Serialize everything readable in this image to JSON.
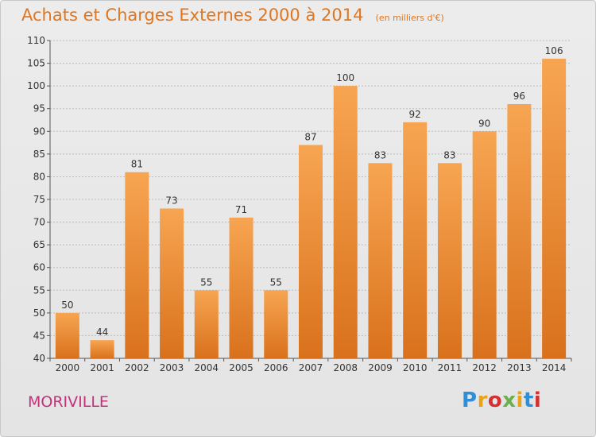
{
  "header": {
    "title": "Achats et Charges Externes 2000 à 2014",
    "subtitle": "(en milliers d'€)"
  },
  "footer": {
    "commune": "MORIVILLE",
    "logo_letters": [
      "P",
      "r",
      "o",
      "x",
      "i",
      "t",
      "i"
    ],
    "logo_colors": [
      "#2f8fd6",
      "#e8a317",
      "#d62f2f",
      "#6ab04c",
      "#e8a317",
      "#2f8fd6",
      "#d62f2f"
    ]
  },
  "colors": {
    "bar_top": "#f7a552",
    "bar_bottom": "#d9711c",
    "axis": "#555555",
    "grid": "#bbbbbb",
    "title": "#e0761f",
    "commune": "#c2317a"
  },
  "chart_data": {
    "type": "bar",
    "categories": [
      "2000",
      "2001",
      "2002",
      "2003",
      "2004",
      "2005",
      "2006",
      "2007",
      "2008",
      "2009",
      "2010",
      "2011",
      "2012",
      "2013",
      "2014"
    ],
    "values": [
      50,
      44,
      81,
      73,
      55,
      71,
      55,
      87,
      100,
      83,
      92,
      83,
      90,
      96,
      106
    ],
    "value_labels": [
      "50",
      "44",
      "81",
      "73",
      "55",
      "71",
      "55",
      "87",
      "100",
      "83",
      "92",
      "83",
      "90",
      "96",
      "106"
    ],
    "ylim": [
      40,
      110
    ],
    "yticks": [
      "40",
      "45",
      "50",
      "55",
      "60",
      "65",
      "70",
      "75",
      "80",
      "85",
      "90",
      "95",
      "100",
      "105",
      "110"
    ],
    "grid": true,
    "title": "Achats et Charges Externes 2000 à 2014",
    "xlabel": "",
    "ylabel": ""
  }
}
